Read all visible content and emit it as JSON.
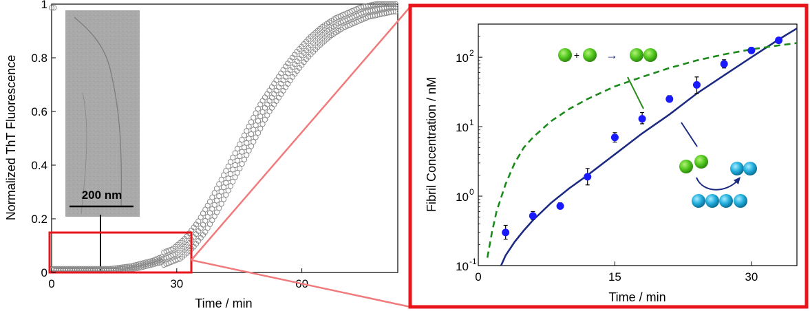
{
  "chart_data": [
    {
      "type": "scatter",
      "xlabel": "Time / min",
      "ylabel": "Normalized ThT Fluorescence",
      "xlim": [
        0,
        83
      ],
      "ylim": [
        0,
        1
      ],
      "x_ticks": [
        0,
        30,
        60
      ],
      "y_ticks": [
        0,
        0.2,
        0.4,
        0.6,
        0.8,
        1
      ],
      "y_tick_labels": [
        "0",
        "0.2",
        "0.4",
        "0.6",
        "0.8",
        "1"
      ],
      "grid": false,
      "marker": "open-circle",
      "marker_color": "#8a8a8a",
      "series": [
        {
          "x": [
            0,
            5,
            10,
            15,
            20,
            25,
            30,
            33,
            36,
            39,
            42,
            45,
            48,
            51,
            54,
            57,
            60,
            63,
            66,
            69,
            72,
            75,
            78,
            81,
            83
          ],
          "y": [
            0.01,
            0.01,
            0.01,
            0.01,
            0.02,
            0.04,
            0.07,
            0.11,
            0.17,
            0.25,
            0.34,
            0.43,
            0.52,
            0.61,
            0.68,
            0.75,
            0.81,
            0.86,
            0.9,
            0.93,
            0.95,
            0.97,
            0.98,
            0.99,
            0.99
          ]
        }
      ],
      "inset": {
        "scale_bar_label": "200 nm",
        "background": "#a6a6a6"
      },
      "zoom_box": {
        "x": [
          0,
          36
        ],
        "y": [
          0,
          0.15
        ],
        "color": "#e8161b"
      }
    },
    {
      "type": "scatter",
      "xlabel": "Time / min",
      "ylabel": "Fibril Concentration / nM",
      "xlim": [
        0,
        35
      ],
      "ylim": [
        0.1,
        300
      ],
      "yscale": "log",
      "x_ticks": [
        0,
        15,
        30
      ],
      "y_ticks": [
        0.1,
        1,
        10,
        100
      ],
      "y_tick_bases": [
        "10",
        "10",
        "10",
        "10"
      ],
      "y_tick_exponents": [
        "-1",
        "0",
        "1",
        "2"
      ],
      "grid": false,
      "frame_color": "#e8161b",
      "series": [
        {
          "style": "points-with-error-bars",
          "color": "#1a1aff",
          "x": [
            3,
            6,
            9,
            12,
            15,
            18,
            21,
            24,
            27,
            30,
            33
          ],
          "y": [
            0.3,
            0.52,
            0.72,
            1.9,
            7,
            13,
            25,
            40,
            80,
            125,
            175
          ],
          "err_low": [
            0.24,
            0.46,
            0.66,
            1.45,
            6,
            11,
            23,
            30,
            70,
            115,
            160
          ],
          "err_high": [
            0.38,
            0.6,
            0.8,
            2.5,
            8.2,
            16,
            28,
            52,
            92,
            138,
            190
          ]
        },
        {
          "style": "solid-line",
          "color": "#1c2a82",
          "x": [
            2.5,
            3,
            4,
            5,
            6,
            8,
            10,
            12,
            15,
            18,
            21,
            24,
            27,
            30,
            33,
            35
          ],
          "y": [
            0.1,
            0.14,
            0.22,
            0.32,
            0.45,
            0.8,
            1.3,
            2.0,
            4.0,
            8,
            15,
            30,
            55,
            100,
            180,
            260
          ]
        },
        {
          "style": "dashed-line",
          "color": "#1a8a1a",
          "x": [
            1,
            1.5,
            2,
            3,
            4,
            5,
            6,
            8,
            10,
            12,
            15,
            18,
            21,
            24,
            27,
            30,
            33,
            35
          ],
          "y": [
            0.13,
            0.3,
            0.6,
            1.5,
            3,
            5,
            7,
            12,
            18,
            25,
            38,
            52,
            70,
            90,
            110,
            130,
            148,
            160
          ]
        }
      ],
      "annotations": {
        "primary_nucleation": {
          "symbols": [
            "+",
            "→"
          ],
          "monomer_color": "#4cc21c"
        },
        "secondary_nucleation": {
          "monomer_color": "#4cc21c",
          "fibril_color": "#1aa6d6"
        }
      }
    }
  ]
}
